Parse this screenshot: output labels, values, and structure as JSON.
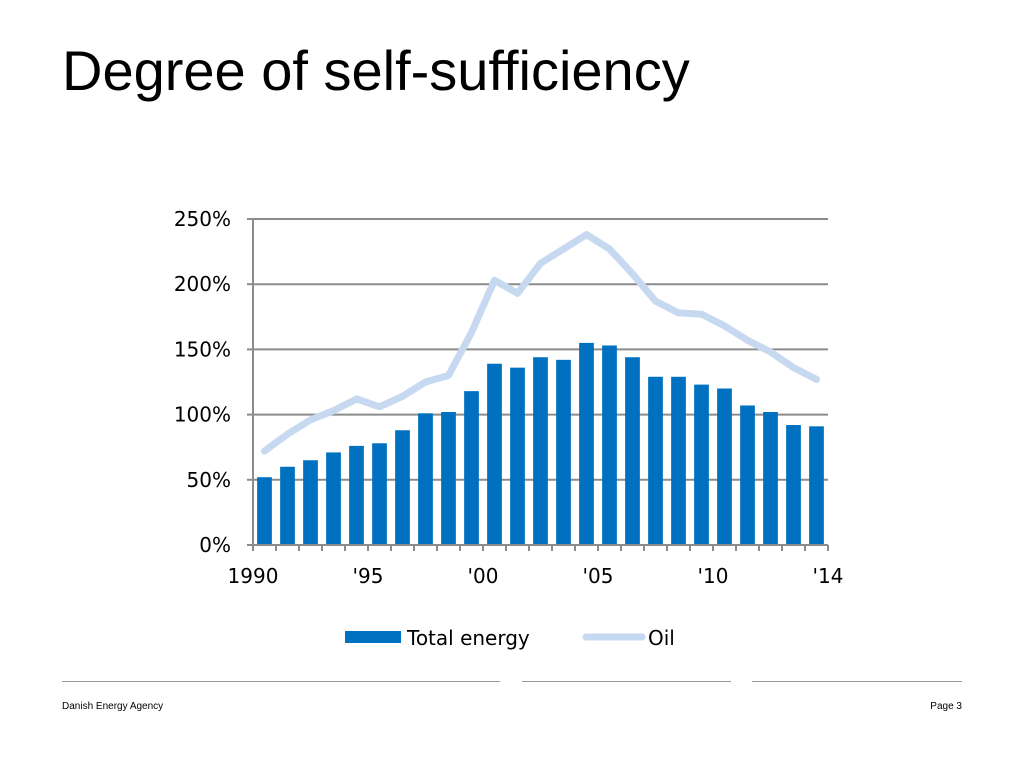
{
  "slide": {
    "title": "Degree of self-sufficiency"
  },
  "footer": {
    "organization": "Danish Energy Agency",
    "page": "Page 3"
  },
  "chart_data": {
    "type": "bar+line",
    "ylim": [
      0,
      250
    ],
    "y_ticks": [
      "0%",
      "50%",
      "100%",
      "150%",
      "200%",
      "250%"
    ],
    "y_tick_values": [
      0,
      50,
      100,
      150,
      200,
      250
    ],
    "x": [
      1990,
      1991,
      1992,
      1993,
      1994,
      1995,
      1996,
      1997,
      1998,
      1999,
      2000,
      2001,
      2002,
      2003,
      2004,
      2005,
      2006,
      2007,
      2008,
      2009,
      2010,
      2011,
      2012,
      2013,
      2014
    ],
    "x_tick_labels": [
      {
        "year": 1990,
        "label": "1990"
      },
      {
        "year": 1995,
        "label": "'95"
      },
      {
        "year": 2000,
        "label": "'00"
      },
      {
        "year": 2005,
        "label": "'05"
      },
      {
        "year": 2010,
        "label": "'10"
      },
      {
        "year": 2014,
        "label": "'14"
      }
    ],
    "grid": true,
    "legend_position": "bottom",
    "series": [
      {
        "name": "Total energy",
        "type": "bar",
        "color": "#0070c0",
        "values": [
          52,
          60,
          65,
          71,
          76,
          78,
          88,
          101,
          102,
          118,
          139,
          136,
          144,
          142,
          155,
          153,
          144,
          129,
          129,
          123,
          120,
          107,
          102,
          92,
          91
        ]
      },
      {
        "name": "Oil",
        "type": "line",
        "color": "#c6d9f1",
        "values": [
          72,
          85,
          96,
          103,
          112,
          106,
          114,
          125,
          130,
          163,
          203,
          193,
          216,
          227,
          238,
          227,
          208,
          187,
          178,
          177,
          168,
          157,
          148,
          136,
          127
        ]
      }
    ]
  }
}
